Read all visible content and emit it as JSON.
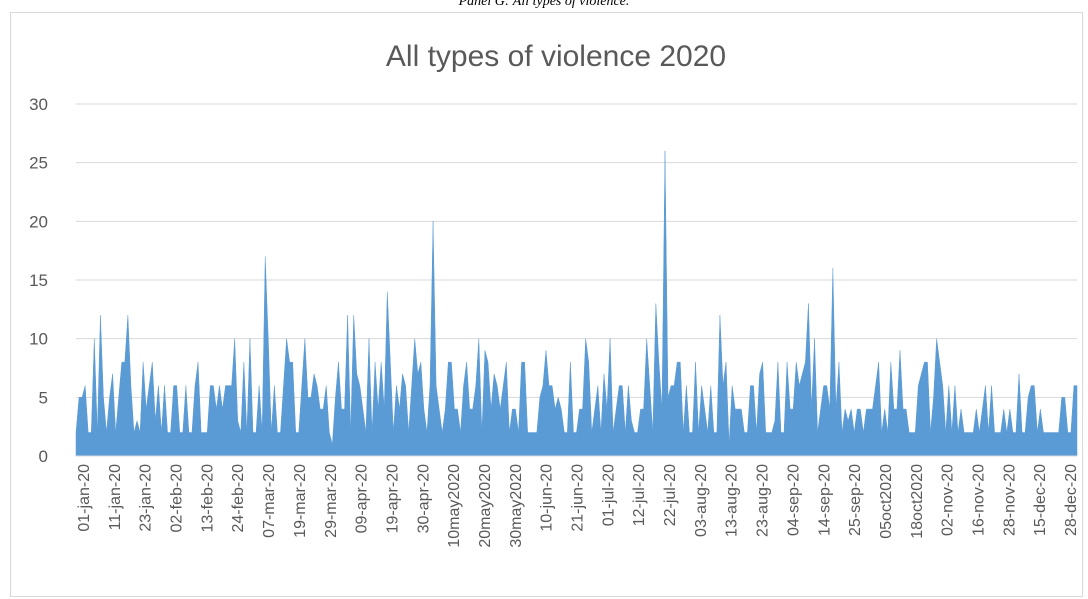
{
  "caption": "Panel G: All types of violence.",
  "colors": {
    "area": "#5b9bd5",
    "grid": "#d9d9d9",
    "text": "#595959"
  },
  "chart_data": {
    "type": "area",
    "title": "All types of violence 2020",
    "xlabel": "",
    "ylabel": "",
    "ylim": [
      0,
      30
    ],
    "yticks": [
      0,
      5,
      10,
      15,
      20,
      25,
      30
    ],
    "grid": true,
    "x_tick_labels": [
      "01-jan-20",
      "11-jan-20",
      "23-jan-20",
      "02-feb-20",
      "13-feb-20",
      "24-feb-20",
      "07-mar-20",
      "19-mar-20",
      "29-mar-20",
      "09-apr-20",
      "19-apr-20",
      "30-apr-20",
      "10may2020",
      "20may2020",
      "30may2020",
      "10-jun-20",
      "21-jun-20",
      "01-jul-20",
      "12-jul-20",
      "22-jul-20",
      "03-aug-20",
      "13-aug-20",
      "23-aug-20",
      "04-sep-20",
      "14-sep-20",
      "25-sep-20",
      "05oct2020",
      "18oct2020",
      "02-nov-20",
      "16-nov-20",
      "28-nov-20",
      "15-dec-20",
      "28-dec-20"
    ],
    "series": [
      {
        "values": [
          2,
          5,
          5,
          6,
          2,
          2,
          10,
          2,
          12,
          5,
          2,
          5,
          7,
          2,
          5,
          8,
          8,
          12,
          6,
          2,
          3,
          2,
          8,
          4,
          6,
          8,
          3,
          6,
          2,
          6,
          2,
          2,
          6,
          6,
          2,
          2,
          6,
          2,
          2,
          6,
          8,
          2,
          2,
          2,
          6,
          6,
          4,
          6,
          4,
          6,
          6,
          6,
          10,
          3,
          2,
          8,
          2,
          10,
          2,
          2,
          6,
          2,
          17,
          10,
          2,
          6,
          2,
          2,
          6,
          10,
          8,
          8,
          2,
          2,
          6,
          10,
          5,
          5,
          7,
          6,
          4,
          4,
          6,
          2,
          1,
          5,
          8,
          4,
          4,
          12,
          2,
          12,
          7,
          6,
          4,
          2,
          10,
          2,
          8,
          4,
          8,
          4,
          14,
          8,
          2,
          6,
          4,
          7,
          6,
          2,
          6,
          10,
          7,
          8,
          4,
          2,
          6,
          20,
          6,
          4,
          2,
          4,
          8,
          8,
          4,
          4,
          2,
          6,
          8,
          4,
          4,
          6,
          10,
          2,
          9,
          8,
          4,
          7,
          6,
          4,
          6,
          8,
          2,
          4,
          4,
          2,
          8,
          8,
          2,
          2,
          2,
          2,
          5,
          6,
          9,
          6,
          6,
          4,
          5,
          4,
          2,
          2,
          8,
          2,
          2,
          4,
          4,
          10,
          8,
          2,
          4,
          6,
          2,
          7,
          4,
          10,
          2,
          4,
          6,
          6,
          2,
          6,
          3,
          2,
          2,
          4,
          4,
          10,
          6,
          2,
          13,
          8,
          4,
          26,
          5,
          6,
          6,
          8,
          8,
          2,
          6,
          2,
          2,
          8,
          2,
          6,
          4,
          2,
          6,
          2,
          2,
          12,
          6,
          8,
          1,
          6,
          4,
          4,
          4,
          2,
          2,
          6,
          6,
          2,
          7,
          8,
          2,
          2,
          2,
          3,
          8,
          2,
          2,
          8,
          4,
          4,
          8,
          6,
          7,
          8,
          13,
          4,
          10,
          2,
          4,
          6,
          6,
          4,
          16,
          4,
          8,
          2,
          4,
          3,
          4,
          2,
          4,
          4,
          2,
          4,
          4,
          4,
          6,
          8,
          2,
          4,
          2,
          8,
          4,
          4,
          9,
          4,
          4,
          2,
          2,
          2,
          6,
          7,
          8,
          8,
          2,
          5,
          10,
          8,
          6,
          2,
          6,
          2,
          6,
          2,
          4,
          2,
          2,
          2,
          2,
          4,
          2,
          4,
          6,
          2,
          6,
          2,
          2,
          2,
          4,
          2,
          4,
          2,
          2,
          7,
          2,
          2,
          5,
          6,
          6,
          2,
          4,
          2,
          2,
          2,
          2,
          2,
          2,
          5,
          5,
          2,
          2,
          6,
          6
        ]
      }
    ]
  }
}
